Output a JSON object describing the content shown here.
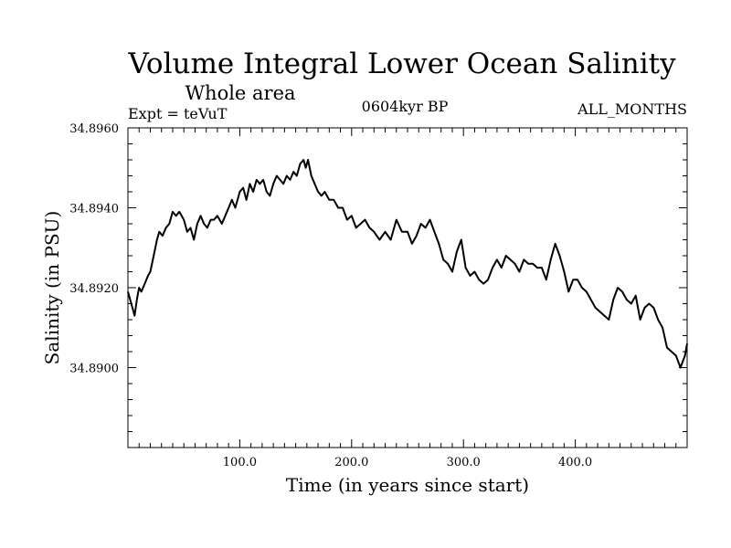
{
  "header": {
    "title": "Volume Integral Lower Ocean Salinity",
    "subtitle": "Whole area",
    "expt": "Expt = teVuT",
    "period": "0604kyr BP",
    "months": "ALL_MONTHS"
  },
  "chart_data": {
    "type": "line",
    "xlabel": "Time (in years since start)",
    "ylabel": "Salinity (in PSU)",
    "xlim": [
      0,
      500
    ],
    "ylim": [
      34.888,
      34.896
    ],
    "x_ticks": [
      100,
      200,
      300,
      400
    ],
    "x_tick_labels": [
      "100.0",
      "200.0",
      "300.0",
      "400.0"
    ],
    "y_ticks": [
      34.89,
      34.892,
      34.894,
      34.896
    ],
    "y_tick_labels": [
      "34.8900",
      "34.8920",
      "34.8940",
      "34.8960"
    ],
    "grid": false,
    "color": "#000000",
    "series": [
      {
        "x": [
          0,
          3,
          6,
          8,
          10,
          12,
          15,
          18,
          20,
          23,
          26,
          28,
          31,
          34,
          37,
          40,
          43,
          46,
          50,
          53,
          56,
          59,
          62,
          65,
          68,
          71,
          74,
          77,
          80,
          84,
          87,
          90,
          93,
          96,
          100,
          103,
          106,
          109,
          112,
          115,
          118,
          121,
          124,
          127,
          130,
          133,
          136,
          139,
          142,
          145,
          148,
          151,
          154,
          157,
          159,
          161,
          164,
          167,
          170,
          173,
          176,
          180,
          184,
          188,
          192,
          196,
          200,
          204,
          208,
          212,
          216,
          220,
          225,
          230,
          235,
          240,
          245,
          250,
          254,
          258,
          262,
          266,
          270,
          274,
          278,
          282,
          286,
          290,
          294,
          298,
          302,
          306,
          310,
          314,
          318,
          322,
          326,
          330,
          334,
          338,
          342,
          346,
          350,
          354,
          358,
          362,
          366,
          370,
          374,
          378,
          382,
          386,
          390,
          394,
          398,
          402,
          406,
          410,
          414,
          418,
          422,
          426,
          430,
          434,
          438,
          442,
          446,
          450,
          454,
          458,
          462,
          466,
          470,
          474,
          478,
          482,
          486,
          490,
          494,
          498,
          500
        ],
        "y": [
          34.8919,
          34.8916,
          34.8913,
          34.8917,
          34.892,
          34.8919,
          34.8921,
          34.8923,
          34.8924,
          34.8928,
          34.8932,
          34.8934,
          34.8933,
          34.8935,
          34.8936,
          34.8939,
          34.8938,
          34.8939,
          34.8937,
          34.8934,
          34.8935,
          34.8932,
          34.8936,
          34.8938,
          34.8936,
          34.8935,
          34.8937,
          34.8937,
          34.8938,
          34.8936,
          34.8938,
          34.894,
          34.8942,
          34.894,
          34.8944,
          34.8945,
          34.8942,
          34.8946,
          34.8944,
          34.8947,
          34.8946,
          34.8947,
          34.8944,
          34.8943,
          34.8946,
          34.8948,
          34.8947,
          34.8946,
          34.8948,
          34.8947,
          34.8949,
          34.8948,
          34.8951,
          34.8952,
          34.895,
          34.8952,
          34.8948,
          34.8946,
          34.8944,
          34.8943,
          34.8944,
          34.8942,
          34.8942,
          34.894,
          34.894,
          34.8937,
          34.8938,
          34.8935,
          34.8936,
          34.8937,
          34.8935,
          34.8934,
          34.8932,
          34.8934,
          34.8932,
          34.8937,
          34.8934,
          34.8934,
          34.8931,
          34.8933,
          34.8936,
          34.8935,
          34.8937,
          34.8934,
          34.8931,
          34.8927,
          34.8926,
          34.8924,
          34.8929,
          34.8932,
          34.8925,
          34.8923,
          34.8924,
          34.8922,
          34.8921,
          34.8922,
          34.8925,
          34.8927,
          34.8925,
          34.8928,
          34.8927,
          34.8926,
          34.8924,
          34.8927,
          34.8926,
          34.8926,
          34.8925,
          34.8925,
          34.8922,
          34.8927,
          34.8931,
          34.8928,
          34.8924,
          34.8919,
          34.8922,
          34.8922,
          34.892,
          34.8919,
          34.8917,
          34.8915,
          34.8914,
          34.8913,
          34.8912,
          34.8917,
          34.892,
          34.8919,
          34.8917,
          34.8916,
          34.8918,
          34.8912,
          34.8915,
          34.8916,
          34.8915,
          34.8912,
          34.891,
          34.8905,
          34.8904,
          34.8903,
          34.89,
          34.8903,
          34.8906
        ]
      }
    ]
  }
}
